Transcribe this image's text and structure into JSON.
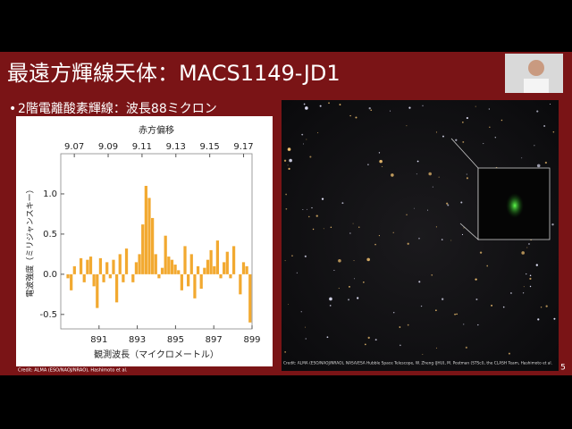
{
  "slide": {
    "title": "最遠方輝線天体：MACS1149-JD1",
    "bullet": "2階電離酸素輝線：波長88ミクロン",
    "chart_credit": "Credit: ALMA (ESO/NAOJ/NRAO), Hashimoto et al.",
    "image_credit": "Credit: ALMA (ESO/NAOJ/NRAO), NASA/ESA Hubble Space Telescope, W. Zheng (JHU), M. Postman (STScI), the CLASH Team, Hashimoto et al.",
    "page_number": "5"
  },
  "chart_data": {
    "type": "histogram",
    "color": "#f2a930",
    "x2_label": "赤方偏移",
    "ylabel": "電波強度（ミリジャンスキー）",
    "xlabel": "観測波長（マイクロメートル）",
    "bins": [
      889.3,
      889.47,
      889.64,
      889.81,
      889.98,
      890.15,
      890.32,
      890.49,
      890.66,
      890.83,
      891.0,
      891.17,
      891.34,
      891.51,
      891.68,
      891.85,
      892.02,
      892.19,
      892.36,
      892.53,
      892.7,
      892.87,
      893.04,
      893.21,
      893.38,
      893.55,
      893.72,
      893.89,
      894.06,
      894.23,
      894.4,
      894.57,
      894.74,
      894.91,
      895.08,
      895.25,
      895.42,
      895.59,
      895.76,
      895.93,
      896.1,
      896.27,
      896.44,
      896.61,
      896.78,
      896.95,
      897.12,
      897.29,
      897.46,
      897.63,
      897.8,
      897.97,
      898.14,
      898.31,
      898.48,
      898.65,
      898.82,
      898.99
    ],
    "values": [
      -0.05,
      -0.2,
      0.1,
      0.0,
      0.2,
      -0.1,
      0.18,
      0.22,
      -0.15,
      -0.42,
      0.2,
      -0.1,
      0.15,
      -0.05,
      0.18,
      -0.35,
      0.25,
      -0.1,
      0.32,
      0.0,
      -0.1,
      0.15,
      0.25,
      0.62,
      1.1,
      0.95,
      0.7,
      0.25,
      -0.05,
      0.08,
      0.48,
      0.22,
      0.18,
      0.12,
      0.05,
      -0.2,
      0.35,
      -0.15,
      0.25,
      -0.3,
      0.1,
      -0.18,
      0.08,
      0.18,
      0.3,
      0.1,
      0.42,
      -0.05,
      0.15,
      0.28,
      -0.05,
      0.35,
      0.0,
      -0.25,
      0.15,
      0.1,
      -0.6
    ],
    "xlim": [
      889,
      899
    ],
    "xticks": [
      891,
      893,
      895,
      897,
      899
    ],
    "x2lim": [
      9.062,
      9.175
    ],
    "x2ticks": [
      9.07,
      9.09,
      9.11,
      9.13,
      9.15,
      9.17
    ],
    "ylim": [
      -0.68,
      1.5
    ],
    "yticks": [
      {
        "value": -0.5,
        "label": "-0.5"
      },
      {
        "value": 0,
        "label": "0.0"
      },
      0.5,
      {
        "value": 1,
        "label": "1.0"
      }
    ]
  }
}
